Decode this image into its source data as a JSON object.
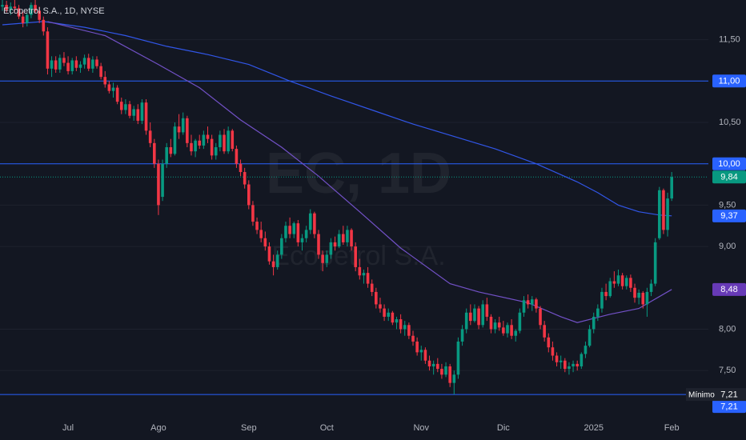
{
  "chart_data": {
    "type": "candlestick",
    "title": "Ecopetrol S.A., 1D, NYSE",
    "watermark": "EC, 1D",
    "watermark_sub": "Ecopetrol S.A.",
    "up_color": "#089981",
    "down_color": "#f23645",
    "ylim": [
      6.95,
      11.98
    ],
    "yticks": [
      {
        "value": 7.5,
        "label": "7,50"
      },
      {
        "value": 8,
        "label": "8,00"
      },
      {
        "value": 9,
        "label": "9,00"
      },
      {
        "value": 9.5,
        "label": "9,50"
      },
      {
        "value": 10.5,
        "label": "10,50"
      },
      {
        "value": 11.5,
        "label": "11,50"
      }
    ],
    "x_labels": [
      {
        "index": 16,
        "label": "Jul"
      },
      {
        "index": 38,
        "label": "Ago"
      },
      {
        "index": 60,
        "label": "Sep"
      },
      {
        "index": 79,
        "label": "Oct"
      },
      {
        "index": 102,
        "label": "Nov"
      },
      {
        "index": 122,
        "label": "Dic"
      },
      {
        "index": 144,
        "label": "2025"
      },
      {
        "index": 163,
        "label": "Feb"
      }
    ],
    "candles": [
      [
        11.9,
        11.98,
        11.85,
        11.92
      ],
      [
        11.92,
        11.97,
        11.83,
        11.86
      ],
      [
        11.86,
        11.95,
        11.8,
        11.9
      ],
      [
        11.9,
        11.98,
        11.84,
        11.88
      ],
      [
        11.88,
        11.92,
        11.75,
        11.78
      ],
      [
        11.78,
        11.84,
        11.65,
        11.7
      ],
      [
        11.7,
        11.82,
        11.66,
        11.8
      ],
      [
        11.8,
        11.95,
        11.76,
        11.92
      ],
      [
        11.92,
        11.98,
        11.82,
        11.85
      ],
      [
        11.85,
        11.9,
        11.7,
        11.74
      ],
      [
        11.74,
        11.78,
        11.55,
        11.6
      ],
      [
        11.6,
        11.65,
        11.08,
        11.15
      ],
      [
        11.15,
        11.3,
        11.05,
        11.25
      ],
      [
        11.25,
        11.3,
        11.1,
        11.14
      ],
      [
        11.14,
        11.32,
        11.1,
        11.28
      ],
      [
        11.28,
        11.35,
        11.18,
        11.22
      ],
      [
        11.22,
        11.3,
        11.08,
        11.12
      ],
      [
        11.12,
        11.28,
        11.08,
        11.25
      ],
      [
        11.25,
        11.3,
        11.12,
        11.16
      ],
      [
        11.16,
        11.24,
        11.1,
        11.2
      ],
      [
        11.2,
        11.32,
        11.15,
        11.28
      ],
      [
        11.28,
        11.33,
        11.12,
        11.15
      ],
      [
        11.15,
        11.3,
        11.1,
        11.26
      ],
      [
        11.26,
        11.3,
        11.15,
        11.18
      ],
      [
        11.18,
        11.22,
        11.02,
        11.05
      ],
      [
        11.05,
        11.12,
        10.92,
        10.96
      ],
      [
        10.96,
        11.0,
        10.85,
        10.88
      ],
      [
        10.88,
        10.98,
        10.8,
        10.92
      ],
      [
        10.92,
        10.95,
        10.72,
        10.75
      ],
      [
        10.75,
        10.8,
        10.6,
        10.65
      ],
      [
        10.65,
        10.78,
        10.6,
        10.72
      ],
      [
        10.72,
        10.76,
        10.55,
        10.58
      ],
      [
        10.58,
        10.7,
        10.52,
        10.66
      ],
      [
        10.66,
        10.72,
        10.48,
        10.52
      ],
      [
        10.52,
        10.78,
        10.48,
        10.74
      ],
      [
        10.74,
        10.78,
        10.35,
        10.4
      ],
      [
        10.4,
        10.5,
        10.2,
        10.25
      ],
      [
        10.25,
        10.3,
        9.95,
        10.0
      ],
      [
        10.0,
        10.05,
        9.38,
        9.5
      ],
      [
        9.6,
        10.05,
        9.55,
        10.0
      ],
      [
        10.0,
        10.25,
        9.95,
        10.2
      ],
      [
        10.2,
        10.3,
        10.08,
        10.12
      ],
      [
        10.12,
        10.5,
        10.1,
        10.45
      ],
      [
        10.45,
        10.6,
        10.3,
        10.38
      ],
      [
        10.38,
        10.62,
        10.35,
        10.55
      ],
      [
        10.55,
        10.58,
        10.2,
        10.25
      ],
      [
        10.25,
        10.35,
        10.1,
        10.15
      ],
      [
        10.15,
        10.3,
        10.08,
        10.28
      ],
      [
        10.28,
        10.35,
        10.18,
        10.22
      ],
      [
        10.22,
        10.4,
        10.18,
        10.35
      ],
      [
        10.35,
        10.45,
        10.25,
        10.3
      ],
      [
        10.3,
        10.35,
        10.05,
        10.1
      ],
      [
        10.1,
        10.25,
        10.05,
        10.2
      ],
      [
        10.2,
        10.4,
        10.15,
        10.35
      ],
      [
        10.35,
        10.42,
        10.12,
        10.15
      ],
      [
        10.15,
        10.45,
        10.12,
        10.4
      ],
      [
        10.4,
        10.42,
        10.15,
        10.18
      ],
      [
        10.18,
        10.22,
        9.95,
        10.0
      ],
      [
        10.0,
        10.05,
        9.85,
        9.9
      ],
      [
        9.9,
        9.95,
        9.7,
        9.75
      ],
      [
        9.75,
        9.8,
        9.45,
        9.5
      ],
      [
        9.5,
        9.55,
        9.25,
        9.3
      ],
      [
        9.3,
        9.35,
        9.15,
        9.2
      ],
      [
        9.2,
        9.3,
        9.05,
        9.1
      ],
      [
        9.1,
        9.18,
        8.95,
        9.0
      ],
      [
        9.0,
        9.05,
        8.78,
        8.82
      ],
      [
        8.82,
        8.9,
        8.65,
        8.75
      ],
      [
        8.75,
        8.95,
        8.72,
        8.9
      ],
      [
        8.9,
        9.15,
        8.85,
        9.1
      ],
      [
        9.1,
        9.3,
        9.05,
        9.25
      ],
      [
        9.25,
        9.35,
        9.1,
        9.15
      ],
      [
        9.15,
        9.3,
        9.1,
        9.28
      ],
      [
        9.28,
        9.32,
        9.0,
        9.05
      ],
      [
        9.05,
        9.15,
        8.95,
        9.1
      ],
      [
        9.1,
        9.25,
        9.05,
        9.2
      ],
      [
        9.2,
        9.45,
        9.15,
        9.4
      ],
      [
        9.4,
        9.42,
        9.1,
        9.15
      ],
      [
        9.15,
        9.2,
        8.85,
        8.9
      ],
      [
        8.9,
        8.95,
        8.7,
        8.8
      ],
      [
        8.8,
        8.95,
        8.75,
        8.9
      ],
      [
        8.9,
        9.1,
        8.85,
        9.05
      ],
      [
        9.05,
        9.12,
        8.95,
        9.0
      ],
      [
        9.0,
        9.2,
        8.98,
        9.15
      ],
      [
        9.15,
        9.25,
        9.02,
        9.05
      ],
      [
        9.05,
        9.25,
        9.0,
        9.2
      ],
      [
        9.2,
        9.22,
        8.95,
        9.0
      ],
      [
        9.0,
        9.05,
        8.7,
        8.75
      ],
      [
        8.75,
        8.85,
        8.6,
        8.65
      ],
      [
        8.65,
        8.72,
        8.55,
        8.68
      ],
      [
        8.68,
        8.75,
        8.5,
        8.55
      ],
      [
        8.55,
        8.6,
        8.4,
        8.45
      ],
      [
        8.45,
        8.5,
        8.25,
        8.3
      ],
      [
        8.3,
        8.38,
        8.2,
        8.25
      ],
      [
        8.25,
        8.3,
        8.1,
        8.15
      ],
      [
        8.15,
        8.25,
        8.1,
        8.2
      ],
      [
        8.2,
        8.22,
        8.05,
        8.08
      ],
      [
        8.08,
        8.15,
        8.0,
        8.12
      ],
      [
        8.12,
        8.18,
        7.95,
        8.0
      ],
      [
        8.0,
        8.1,
        7.92,
        8.05
      ],
      [
        8.05,
        8.08,
        7.88,
        7.92
      ],
      [
        7.92,
        7.98,
        7.8,
        7.85
      ],
      [
        7.85,
        7.9,
        7.68,
        7.72
      ],
      [
        7.72,
        7.8,
        7.62,
        7.75
      ],
      [
        7.75,
        7.78,
        7.58,
        7.62
      ],
      [
        7.62,
        7.68,
        7.5,
        7.55
      ],
      [
        7.55,
        7.62,
        7.45,
        7.58
      ],
      [
        7.58,
        7.65,
        7.48,
        7.52
      ],
      [
        7.52,
        7.58,
        7.4,
        7.45
      ],
      [
        7.45,
        7.6,
        7.42,
        7.55
      ],
      [
        7.55,
        7.58,
        7.3,
        7.35
      ],
      [
        7.35,
        7.5,
        7.21,
        7.45
      ],
      [
        7.45,
        7.9,
        7.4,
        7.85
      ],
      [
        7.85,
        8.05,
        7.8,
        8.0
      ],
      [
        8.0,
        8.25,
        7.95,
        8.2
      ],
      [
        8.2,
        8.3,
        8.05,
        8.1
      ],
      [
        8.1,
        8.3,
        8.08,
        8.25
      ],
      [
        8.25,
        8.28,
        8.0,
        8.05
      ],
      [
        8.05,
        8.35,
        8.02,
        8.3
      ],
      [
        8.3,
        8.38,
        8.1,
        8.15
      ],
      [
        8.15,
        8.18,
        7.95,
        8.0
      ],
      [
        8.0,
        8.12,
        7.95,
        8.08
      ],
      [
        8.08,
        8.15,
        7.98,
        8.02
      ],
      [
        8.02,
        8.1,
        7.92,
        7.95
      ],
      [
        7.95,
        8.08,
        7.9,
        8.05
      ],
      [
        8.05,
        8.12,
        7.88,
        7.92
      ],
      [
        7.92,
        8.0,
        7.85,
        7.98
      ],
      [
        7.98,
        8.25,
        7.95,
        8.2
      ],
      [
        8.2,
        8.4,
        8.15,
        8.35
      ],
      [
        8.35,
        8.42,
        8.25,
        8.3
      ],
      [
        8.3,
        8.4,
        8.22,
        8.36
      ],
      [
        8.36,
        8.38,
        8.2,
        8.25
      ],
      [
        8.25,
        8.28,
        8.0,
        8.05
      ],
      [
        8.05,
        8.1,
        7.85,
        7.9
      ],
      [
        7.9,
        7.95,
        7.72,
        7.78
      ],
      [
        7.78,
        7.85,
        7.62,
        7.68
      ],
      [
        7.68,
        7.72,
        7.55,
        7.6
      ],
      [
        7.6,
        7.68,
        7.52,
        7.62
      ],
      [
        7.62,
        7.65,
        7.48,
        7.52
      ],
      [
        7.52,
        7.6,
        7.45,
        7.55
      ],
      [
        7.55,
        7.62,
        7.48,
        7.58
      ],
      [
        7.58,
        7.62,
        7.5,
        7.55
      ],
      [
        7.55,
        7.72,
        7.52,
        7.7
      ],
      [
        7.7,
        7.85,
        7.65,
        7.8
      ],
      [
        7.8,
        8.05,
        7.78,
        8.0
      ],
      [
        8.0,
        8.2,
        7.95,
        8.15
      ],
      [
        8.15,
        8.3,
        8.1,
        8.25
      ],
      [
        8.25,
        8.5,
        8.2,
        8.45
      ],
      [
        8.45,
        8.55,
        8.35,
        8.4
      ],
      [
        8.4,
        8.62,
        8.38,
        8.58
      ],
      [
        8.58,
        8.7,
        8.5,
        8.55
      ],
      [
        8.55,
        8.72,
        8.52,
        8.65
      ],
      [
        8.65,
        8.68,
        8.48,
        8.52
      ],
      [
        8.52,
        8.65,
        8.48,
        8.62
      ],
      [
        8.62,
        8.66,
        8.45,
        8.5
      ],
      [
        8.5,
        8.55,
        8.32,
        8.38
      ],
      [
        8.38,
        8.48,
        8.3,
        8.44
      ],
      [
        8.44,
        8.46,
        8.25,
        8.3
      ],
      [
        8.3,
        8.5,
        8.15,
        8.45
      ],
      [
        8.45,
        8.6,
        8.4,
        8.55
      ],
      [
        8.55,
        9.1,
        8.52,
        9.05
      ],
      [
        9.1,
        9.72,
        9.08,
        9.68
      ],
      [
        9.68,
        9.7,
        9.15,
        9.2
      ],
      [
        9.2,
        9.65,
        9.12,
        9.58
      ],
      [
        9.58,
        9.9,
        9.55,
        9.84
      ]
    ],
    "moving_averages": [
      {
        "color": "#3156e8",
        "label_color": "#2962ff",
        "x": [
          0,
          10,
          20,
          30,
          40,
          50,
          60,
          70,
          80,
          90,
          100,
          110,
          120,
          130,
          140,
          145,
          150,
          155,
          160,
          163
        ],
        "values": [
          11.68,
          11.72,
          11.65,
          11.55,
          11.42,
          11.32,
          11.2,
          11.0,
          10.82,
          10.65,
          10.48,
          10.33,
          10.18,
          10.0,
          9.78,
          9.65,
          9.5,
          9.42,
          9.38,
          9.37
        ],
        "last": {
          "value": 9.37,
          "label": "9,37"
        }
      },
      {
        "color": "#7251c7",
        "label_color": "#673ab7",
        "x": [
          11,
          25,
          38,
          48,
          58,
          68,
          77,
          87,
          97,
          109,
          116,
          128,
          136,
          140,
          148,
          155,
          163
        ],
        "values": [
          11.72,
          11.55,
          11.2,
          10.92,
          10.53,
          10.2,
          9.85,
          9.42,
          8.98,
          8.55,
          8.45,
          8.32,
          8.15,
          8.08,
          8.18,
          8.25,
          8.48
        ],
        "last": {
          "value": 8.48,
          "label": "8,48"
        }
      }
    ],
    "levels": [
      {
        "value": 11,
        "label": "11,00"
      },
      {
        "value": 10,
        "label": "10,00"
      },
      {
        "value": 7.21,
        "label": "7,21"
      }
    ],
    "level_color": "#2962ff",
    "minimum": {
      "name": "Mínimo",
      "value": 7.21,
      "label": "7,21"
    },
    "last_price": {
      "value": 9.84,
      "label": "9,84"
    }
  }
}
